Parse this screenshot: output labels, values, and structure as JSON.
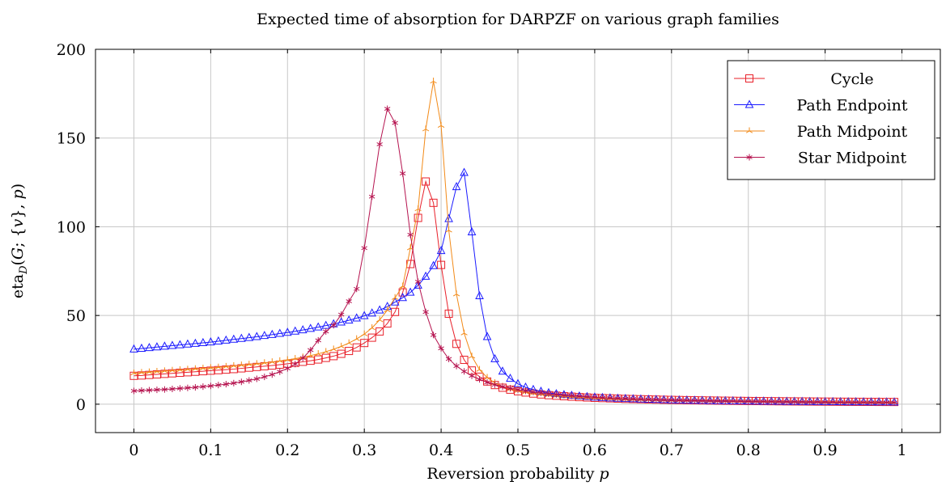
{
  "chart_data": {
    "type": "line",
    "title": "Expected time of absorption for DARPZF on various graph families",
    "xlabel": "Reversion probability p",
    "ylabel": "eta_D(G; {v}, p)",
    "xlim": [
      -0.05,
      1.05
    ],
    "ylim": [
      -16,
      200
    ],
    "xticks": [
      0,
      0.1,
      0.2,
      0.3,
      0.4,
      0.5,
      0.6,
      0.7,
      0.8,
      0.9,
      1
    ],
    "xtick_labels": [
      "0",
      "0.1",
      "0.2",
      "0.3",
      "0.4",
      "0.5",
      "0.6",
      "0.7",
      "0.8",
      "0.9",
      "1"
    ],
    "yticks": [
      0,
      50,
      100,
      150,
      200
    ],
    "ytick_labels": [
      "0",
      "50",
      "100",
      "150",
      "200"
    ],
    "grid": true,
    "legend_position": "top-right",
    "x_step": 0.01,
    "x_count": 100,
    "series": [
      {
        "name": "Cycle",
        "color": "#e8202a",
        "marker": "square",
        "values": [
          16.0,
          16.2,
          16.5,
          16.8,
          17.1,
          17.4,
          17.7,
          18.0,
          18.3,
          18.6,
          18.9,
          19.2,
          19.5,
          19.8,
          20.2,
          20.6,
          21.0,
          21.4,
          21.8,
          22.3,
          22.8,
          23.3,
          23.9,
          24.5,
          25.2,
          26.1,
          27.1,
          28.4,
          30.0,
          32.0,
          34.5,
          37.5,
          41.0,
          45.5,
          52.0,
          63.0,
          79.0,
          105.0,
          125.5,
          113.5,
          78.5,
          51.0,
          34.0,
          25.0,
          19.0,
          15.5,
          12.8,
          10.8,
          9.3,
          8.2,
          7.3,
          6.6,
          6.0,
          5.5,
          5.1,
          4.8,
          4.5,
          4.25,
          4.0,
          3.8,
          3.6,
          3.45,
          3.3,
          3.15,
          3.0,
          2.9,
          2.8,
          2.7,
          2.6,
          2.5,
          2.42,
          2.35,
          2.28,
          2.2,
          2.14,
          2.08,
          2.02,
          1.97,
          1.92,
          1.87,
          1.82,
          1.78,
          1.74,
          1.7,
          1.66,
          1.62,
          1.58,
          1.55,
          1.52,
          1.49,
          1.46,
          1.43,
          1.4,
          1.37,
          1.35,
          1.33,
          1.31,
          1.29,
          1.27,
          1.25
        ]
      },
      {
        "name": "Path Endpoint",
        "color": "#1a1aff",
        "marker": "triangle",
        "values": [
          31.0,
          31.4,
          31.8,
          32.2,
          32.6,
          33.0,
          33.4,
          33.8,
          34.2,
          34.6,
          35.0,
          35.5,
          36.0,
          36.5,
          37.0,
          37.5,
          38.0,
          38.6,
          39.2,
          39.8,
          40.4,
          41.1,
          41.8,
          42.6,
          43.4,
          44.3,
          45.2,
          46.2,
          47.3,
          48.5,
          49.8,
          51.3,
          53.0,
          55.0,
          57.5,
          60.0,
          63.0,
          67.0,
          72.0,
          78.0,
          86.5,
          104.5,
          122.5,
          130.5,
          97.0,
          61.0,
          38.0,
          25.5,
          18.5,
          14.5,
          11.5,
          9.5,
          8.2,
          7.2,
          6.4,
          5.8,
          5.3,
          4.9,
          4.5,
          4.2,
          3.9,
          3.65,
          3.45,
          3.25,
          3.1,
          2.95,
          2.8,
          2.68,
          2.56,
          2.45,
          2.35,
          2.26,
          2.18,
          2.1,
          2.03,
          1.97,
          1.91,
          1.85,
          1.8,
          1.75,
          1.7,
          1.66,
          1.62,
          1.58,
          1.54,
          1.5,
          1.47,
          1.44,
          1.41,
          1.38,
          1.35,
          1.32,
          1.3,
          1.28,
          1.26,
          1.24,
          1.22,
          1.2,
          1.18,
          1.16
        ]
      },
      {
        "name": "Path Midpoint",
        "color": "#f28a18",
        "marker": "star",
        "values": [
          17.5,
          17.8,
          18.1,
          18.4,
          18.7,
          19.0,
          19.3,
          19.6,
          19.9,
          20.2,
          20.5,
          20.8,
          21.2,
          21.6,
          22.0,
          22.4,
          22.8,
          23.3,
          23.8,
          24.4,
          25.0,
          25.7,
          26.5,
          27.4,
          28.4,
          29.6,
          31.0,
          32.6,
          34.5,
          36.8,
          39.5,
          43.0,
          47.5,
          53.0,
          60.0,
          66.5,
          88.0,
          110.0,
          155.0,
          182.0,
          157.0,
          98.0,
          62.0,
          40.0,
          27.0,
          19.5,
          15.0,
          12.0,
          10.0,
          8.6,
          7.6,
          6.8,
          6.2,
          5.7,
          5.2,
          4.8,
          4.5,
          4.2,
          3.95,
          3.7,
          3.5,
          3.3,
          3.15,
          3.0,
          2.85,
          2.72,
          2.6,
          2.5,
          2.4,
          2.3,
          2.22,
          2.14,
          2.07,
          2.0,
          1.94,
          1.88,
          1.82,
          1.77,
          1.72,
          1.67,
          1.63,
          1.59,
          1.55,
          1.51,
          1.48,
          1.45,
          1.42,
          1.39,
          1.36,
          1.33,
          1.31,
          1.29,
          1.27,
          1.25,
          1.23,
          1.21,
          1.19,
          1.17,
          1.15,
          1.13
        ]
      },
      {
        "name": "Star Midpoint",
        "color": "#b5124e",
        "marker": "asterisk",
        "values": [
          7.5,
          7.7,
          7.9,
          8.1,
          8.3,
          8.6,
          8.9,
          9.2,
          9.5,
          9.9,
          10.3,
          10.8,
          11.3,
          11.9,
          12.6,
          13.4,
          14.3,
          15.4,
          16.7,
          18.3,
          20.2,
          22.6,
          26.0,
          30.5,
          36.0,
          41.0,
          44.5,
          50.5,
          58.0,
          65.0,
          88.0,
          117.0,
          146.5,
          166.5,
          158.5,
          130.0,
          95.5,
          69.0,
          52.0,
          39.0,
          31.5,
          25.5,
          21.5,
          18.5,
          16.0,
          14.0,
          12.3,
          11.0,
          9.9,
          9.0,
          8.2,
          7.5,
          6.9,
          6.4,
          5.9,
          5.5,
          5.1,
          4.8,
          4.5,
          4.2,
          3.95,
          3.7,
          3.5,
          3.3,
          3.1,
          2.95,
          2.8,
          2.65,
          2.52,
          2.4,
          2.29,
          2.19,
          2.1,
          2.01,
          1.93,
          1.86,
          1.79,
          1.72,
          1.66,
          1.6,
          1.55,
          1.5,
          1.45,
          1.4,
          1.36,
          1.32,
          1.28,
          1.24,
          1.2,
          1.17,
          1.14,
          1.11,
          1.08,
          1.05,
          1.02,
          0.99,
          0.96,
          0.94,
          0.92,
          0.9
        ]
      }
    ]
  }
}
